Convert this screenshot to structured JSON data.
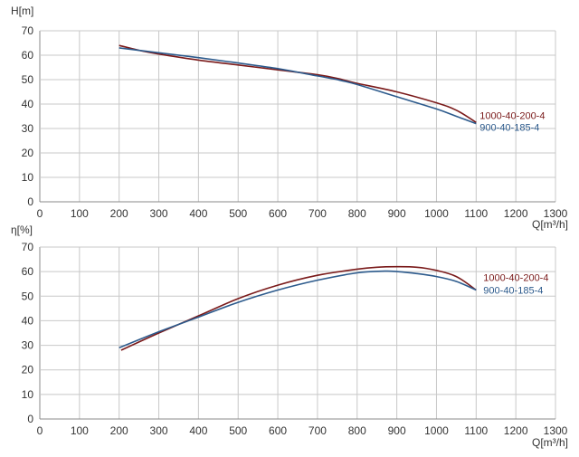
{
  "chart_data": [
    {
      "type": "line",
      "ylabel": "H[m]",
      "xlabel": "Q[m³/h]",
      "xlim": [
        0,
        1300
      ],
      "ylim": [
        0,
        70
      ],
      "xticks": [
        0,
        100,
        200,
        300,
        400,
        500,
        600,
        700,
        800,
        900,
        1000,
        1100,
        1200,
        1300
      ],
      "yticks": [
        0,
        10,
        20,
        30,
        40,
        50,
        60,
        70
      ],
      "grid": true,
      "series": [
        {
          "name": "1000-40-200-4",
          "color": "#7a1a1a",
          "x": [
            200,
            250,
            300,
            400,
            500,
            600,
            700,
            750,
            800,
            900,
            1000,
            1050,
            1100
          ],
          "y": [
            64,
            62,
            60.5,
            58,
            56,
            54,
            52,
            50.5,
            48.5,
            45,
            40.5,
            37.5,
            32.5
          ]
        },
        {
          "name": "900-40-185-4",
          "color": "#2c5a8c",
          "x": [
            200,
            300,
            400,
            500,
            600,
            700,
            750,
            800,
            900,
            1000,
            1050,
            1100
          ],
          "y": [
            63,
            61,
            59,
            56.8,
            54.5,
            51.5,
            50,
            48,
            43,
            38,
            35,
            32
          ]
        }
      ]
    },
    {
      "type": "line",
      "ylabel": "η[%]",
      "xlabel": "Q[m³/h]",
      "xlim": [
        0,
        1300
      ],
      "ylim": [
        0,
        70
      ],
      "xticks": [
        0,
        100,
        200,
        300,
        400,
        500,
        600,
        700,
        800,
        900,
        1000,
        1100,
        1200,
        1300
      ],
      "yticks": [
        0,
        10,
        20,
        30,
        40,
        50,
        60,
        70
      ],
      "grid": true,
      "series": [
        {
          "name": "1000-40-200-4",
          "color": "#7a1a1a",
          "x": [
            205,
            300,
            400,
            500,
            600,
            700,
            800,
            850,
            900,
            950,
            1000,
            1050,
            1100
          ],
          "y": [
            28,
            35,
            42,
            49,
            54.5,
            58.5,
            61,
            61.8,
            62,
            61.8,
            60.5,
            58,
            52.5
          ]
        },
        {
          "name": "900-40-185-4",
          "color": "#2c5a8c",
          "x": [
            200,
            300,
            400,
            500,
            600,
            700,
            800,
            870,
            900,
            950,
            1000,
            1050,
            1100
          ],
          "y": [
            29,
            35.5,
            41.5,
            47.5,
            52.5,
            56.5,
            59.5,
            60.2,
            60,
            59.2,
            58,
            56,
            52.5
          ]
        }
      ]
    }
  ]
}
